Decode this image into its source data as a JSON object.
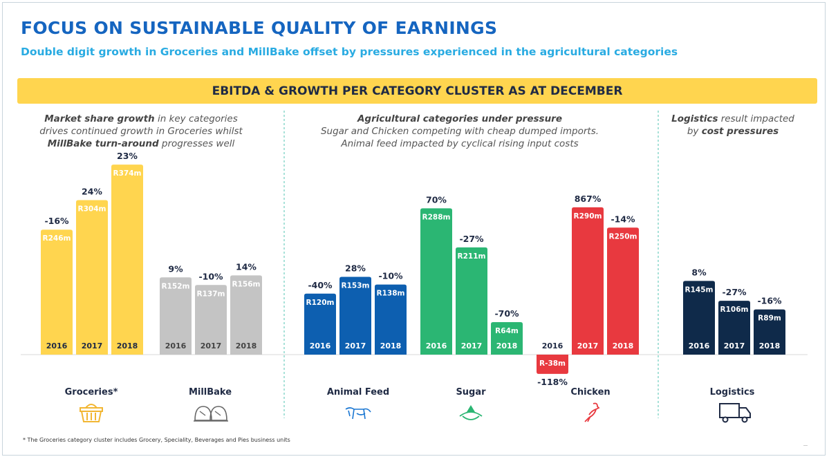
{
  "header": {
    "title": "FOCUS ON SUSTAINABLE QUALITY OF EARNINGS",
    "subtitle": "Double digit growth in Groceries and MillBake offset by pressures experienced in the agricultural categories",
    "banner": "EBITDA & GROWTH PER CATEGORY CLUSTER AS AT DECEMBER"
  },
  "notes": {
    "left": {
      "l1_bold": "Market share growth",
      "l1_rest": " in key categories",
      "l2": "drives continued growth in Groceries whilst",
      "l3_bold": "MillBake turn-around",
      "l3_rest": " progresses well"
    },
    "middle": {
      "l1": "Agricultural categories under pressure",
      "l2": "Sugar and Chicken competing with cheap dumped imports.",
      "l3": "Animal feed impacted by cyclical rising input costs"
    },
    "right": {
      "l1_bold": "Logistics",
      "l1_rest": " result impacted",
      "l2_pre": "by ",
      "l2_bold": "cost pressures"
    }
  },
  "categories": {
    "groceries": "Groceries*",
    "millbake": "MillBake",
    "animal_feed": "Animal Feed",
    "sugar": "Sugar",
    "chicken": "Chicken",
    "logistics": "Logistics"
  },
  "footnote": "* The Groceries category cluster includes Grocery, Speciality, Beverages and Pies business units",
  "chart_data": {
    "type": "bar",
    "title": "EBITDA & GROWTH PER CATEGORY CLUSTER AS AT DECEMBER",
    "unit": "R m",
    "years": [
      "2016",
      "2017",
      "2018"
    ],
    "series": [
      {
        "name": "Groceries*",
        "color": "#ffd54f",
        "values": [
          246,
          304,
          374
        ],
        "value_labels": [
          "R246m",
          "R304m",
          "R374m"
        ],
        "growth": [
          "-16%",
          "24%",
          "23%"
        ]
      },
      {
        "name": "MillBake",
        "color": "#c4c4c4",
        "values": [
          152,
          137,
          156
        ],
        "value_labels": [
          "R152m",
          "R137m",
          "R156m"
        ],
        "growth": [
          "9%",
          "-10%",
          "14%"
        ]
      },
      {
        "name": "Animal Feed",
        "color": "#0d5fb0",
        "values": [
          120,
          153,
          138
        ],
        "value_labels": [
          "R120m",
          "R153m",
          "R138m"
        ],
        "growth": [
          "-40%",
          "28%",
          "-10%"
        ]
      },
      {
        "name": "Sugar",
        "color": "#2bb673",
        "values": [
          288,
          211,
          64
        ],
        "value_labels": [
          "R288m",
          "R211m",
          "R64m"
        ],
        "growth": [
          "70%",
          "-27%",
          "-70%"
        ]
      },
      {
        "name": "Chicken",
        "color": "#e8393f",
        "values": [
          -38,
          290,
          250
        ],
        "value_labels": [
          "R-38m",
          "R290m",
          "R250m"
        ],
        "growth": [
          "-118%",
          "867%",
          "-14%"
        ]
      },
      {
        "name": "Logistics",
        "color": "#0f2a4a",
        "values": [
          145,
          106,
          89
        ],
        "value_labels": [
          "R145m",
          "R106m",
          "R89m"
        ],
        "growth": [
          "8%",
          "-27%",
          "-16%"
        ]
      }
    ]
  }
}
